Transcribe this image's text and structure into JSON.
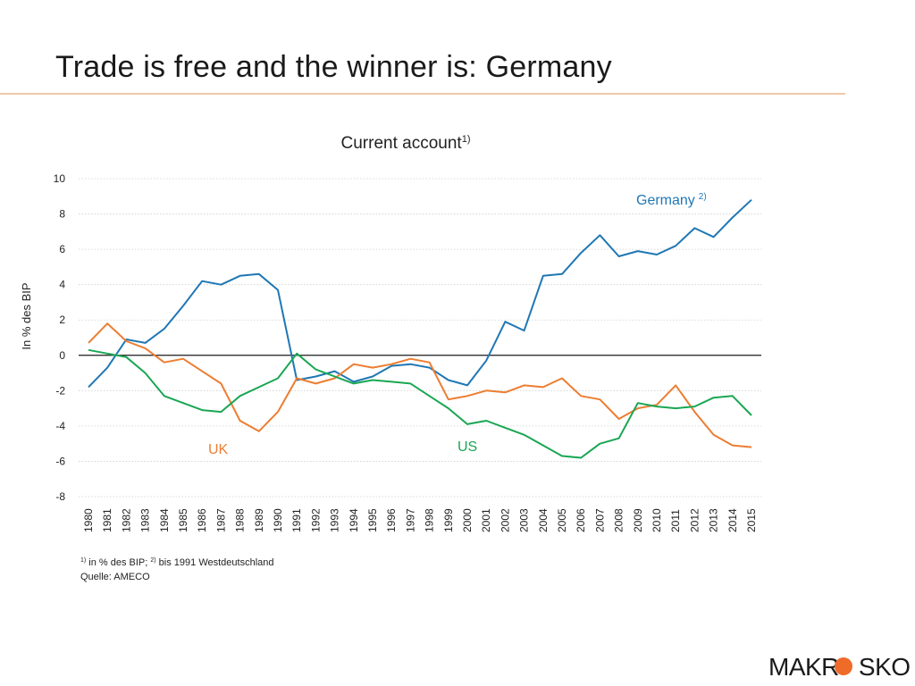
{
  "slide": {
    "title": "Trade is free and the winner is: Germany"
  },
  "footnote": {
    "note1_marker": "1)",
    "note1_text": " in % des BIP; ",
    "note2_marker": "2)",
    "note2_text": " bis 1991 Westdeutschland",
    "source": "Quelle: AMECO"
  },
  "logo": {
    "text_before": "MAKR",
    "text_after": "SKOP",
    "accent_color": "#ee6b2a"
  },
  "chart_data": {
    "type": "line",
    "title": "Current account",
    "title_superscript": "1)",
    "xlabel": "",
    "ylabel": "In % des BIP",
    "ylim": [
      -8,
      10
    ],
    "yticks": [
      -8,
      -6,
      -4,
      -2,
      0,
      2,
      4,
      6,
      8,
      10
    ],
    "grid": true,
    "x": [
      "1980",
      "1981",
      "1982",
      "1983",
      "1984",
      "1985",
      "1986",
      "1987",
      "1988",
      "1989",
      "1990",
      "1991",
      "1992",
      "1993",
      "1994",
      "1995",
      "1996",
      "1997",
      "1998",
      "1999",
      "2000",
      "2001",
      "2002",
      "2003",
      "2004",
      "2005",
      "2006",
      "2007",
      "2008",
      "2009",
      "2010",
      "2011",
      "2012",
      "2013",
      "2014",
      "2015"
    ],
    "series": [
      {
        "name": "Germany",
        "label": "Germany",
        "label_superscript": "2)",
        "color": "#1f77b4",
        "values": [
          -1.8,
          -0.7,
          0.9,
          0.7,
          1.5,
          2.8,
          4.2,
          4.0,
          4.5,
          4.6,
          3.7,
          -1.4,
          -1.2,
          -0.9,
          -1.5,
          -1.2,
          -0.6,
          -0.5,
          -0.7,
          -1.4,
          -1.7,
          -0.3,
          1.9,
          1.4,
          4.5,
          4.6,
          5.8,
          6.8,
          5.6,
          5.9,
          5.7,
          6.2,
          7.2,
          6.7,
          7.8,
          8.8
        ]
      },
      {
        "name": "UK",
        "label": "UK",
        "color": "#ed7d31",
        "values": [
          0.7,
          1.8,
          0.8,
          0.4,
          -0.4,
          -0.2,
          -0.9,
          -1.6,
          -3.7,
          -4.3,
          -3.2,
          -1.3,
          -1.6,
          -1.3,
          -0.5,
          -0.7,
          -0.5,
          -0.2,
          -0.4,
          -2.5,
          -2.3,
          -2.0,
          -2.1,
          -1.7,
          -1.8,
          -1.3,
          -2.3,
          -2.5,
          -3.6,
          -3.0,
          -2.8,
          -1.7,
          -3.2,
          -4.5,
          -5.1,
          -5.2
        ]
      },
      {
        "name": "US",
        "label": "US",
        "color": "#1aa653",
        "values": [
          0.3,
          0.1,
          -0.1,
          -1.0,
          -2.3,
          -2.7,
          -3.1,
          -3.2,
          -2.3,
          -1.8,
          -1.3,
          0.1,
          -0.8,
          -1.2,
          -1.6,
          -1.4,
          -1.5,
          -1.6,
          -2.3,
          -3.0,
          -3.9,
          -3.7,
          -4.1,
          -4.5,
          -5.1,
          -5.7,
          -5.8,
          -5.0,
          -4.7,
          -2.7,
          -2.9,
          -3.0,
          -2.9,
          -2.4,
          -2.3,
          -3.4
        ]
      }
    ]
  }
}
